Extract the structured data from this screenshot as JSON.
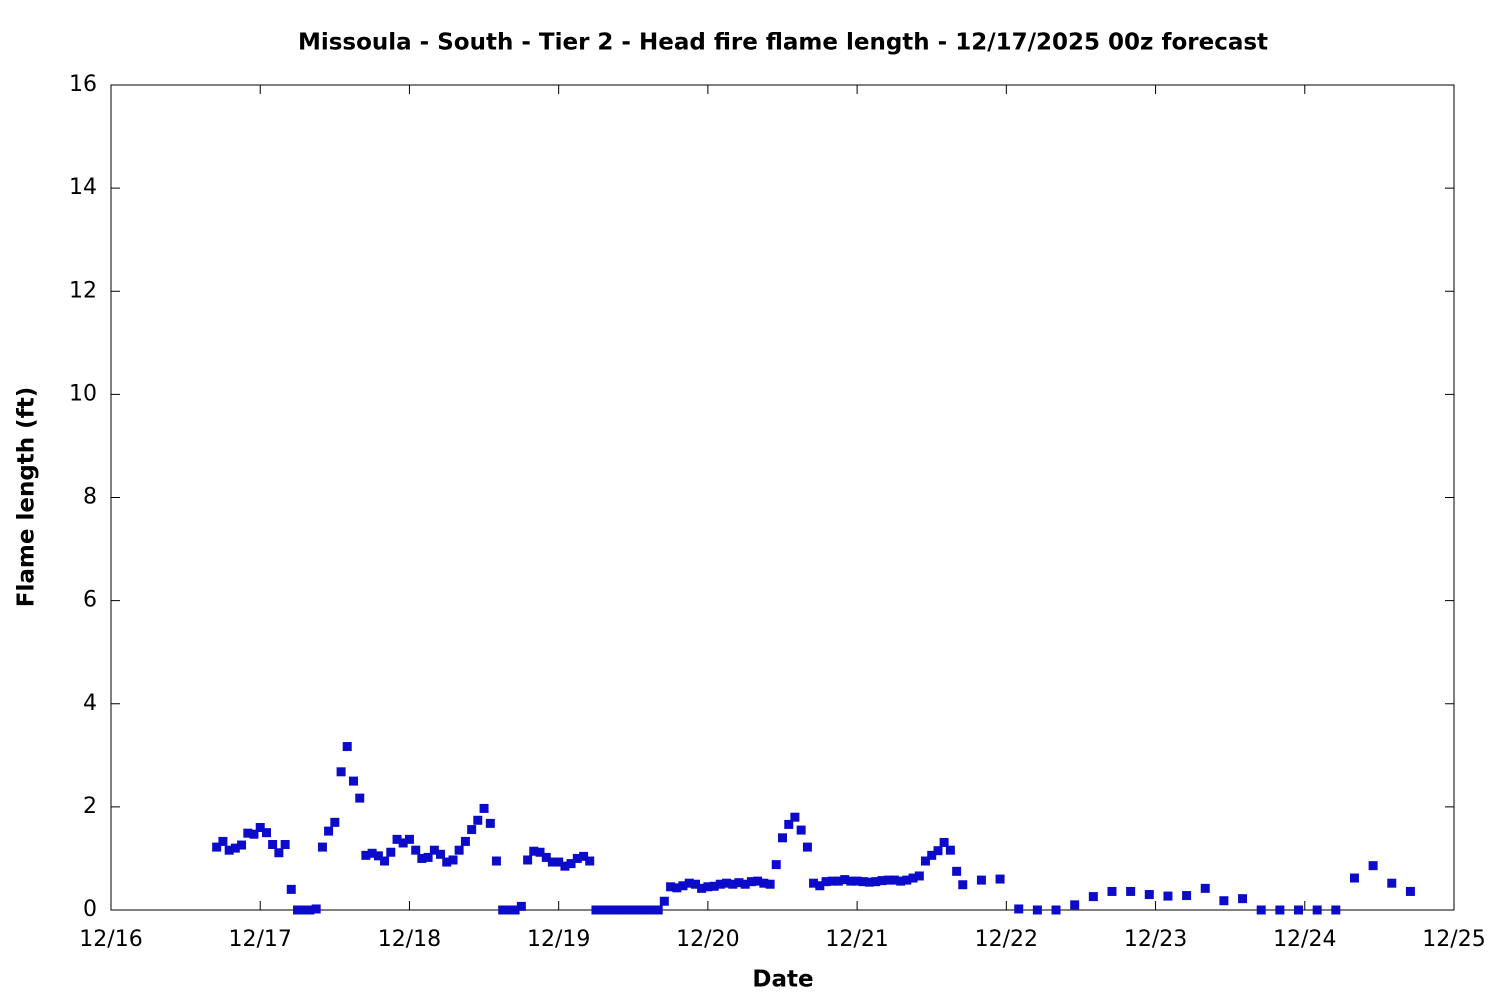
{
  "chart_data": {
    "type": "scatter",
    "title": "Missoula - South - Tier 2 - Head fire flame length - 12/17/2025 00z forecast",
    "xlabel": "Date",
    "ylabel": "Flame length (ft)",
    "xlim": [
      16,
      25
    ],
    "xticks": [
      {
        "value": 16,
        "label": "12/16"
      },
      {
        "value": 17,
        "label": "12/17"
      },
      {
        "value": 18,
        "label": "12/18"
      },
      {
        "value": 19,
        "label": "12/19"
      },
      {
        "value": 20,
        "label": "12/20"
      },
      {
        "value": 21,
        "label": "12/21"
      },
      {
        "value": 22,
        "label": "12/22"
      },
      {
        "value": 23,
        "label": "12/23"
      },
      {
        "value": 24,
        "label": "12/24"
      },
      {
        "value": 25,
        "label": "12/25"
      }
    ],
    "ylim": [
      0,
      16
    ],
    "yticks": [
      0,
      2,
      4,
      6,
      8,
      10,
      12,
      14,
      16
    ],
    "series": [
      {
        "color": "#0b0bc9",
        "x": [
          16.708,
          16.75,
          16.792,
          16.833,
          16.875,
          16.917,
          16.958,
          17.0,
          17.042,
          17.083,
          17.125,
          17.167,
          17.208,
          17.25,
          17.292,
          17.333,
          17.375,
          17.417,
          17.458,
          17.5,
          17.542,
          17.583,
          17.625,
          17.667,
          17.708,
          17.75,
          17.792,
          17.833,
          17.875,
          17.917,
          17.958,
          18.0,
          18.042,
          18.083,
          18.125,
          18.167,
          18.208,
          18.25,
          18.292,
          18.333,
          18.375,
          18.417,
          18.458,
          18.5,
          18.542,
          18.583,
          18.625,
          18.667,
          18.708,
          18.75,
          18.792,
          18.833,
          18.875,
          18.917,
          18.958,
          19.0,
          19.042,
          19.083,
          19.125,
          19.167,
          19.208,
          19.25,
          19.292,
          19.333,
          19.375,
          19.417,
          19.458,
          19.5,
          19.542,
          19.583,
          19.625,
          19.667,
          19.708,
          19.75,
          19.792,
          19.833,
          19.875,
          19.917,
          19.958,
          20.0,
          20.042,
          20.083,
          20.125,
          20.167,
          20.208,
          20.25,
          20.292,
          20.333,
          20.375,
          20.417,
          20.458,
          20.5,
          20.542,
          20.583,
          20.625,
          20.667,
          20.708,
          20.75,
          20.792,
          20.833,
          20.875,
          20.917,
          20.958,
          21.0,
          21.042,
          21.083,
          21.125,
          21.167,
          21.208,
          21.25,
          21.292,
          21.333,
          21.375,
          21.417,
          21.458,
          21.5,
          21.542,
          21.583,
          21.625,
          21.667,
          21.708,
          21.833,
          21.958,
          22.083,
          22.208,
          22.333,
          22.458,
          22.583,
          22.708,
          22.833,
          22.958,
          23.083,
          23.208,
          23.333,
          23.458,
          23.583,
          23.708,
          23.833,
          23.958,
          24.083,
          24.208,
          24.333,
          24.458,
          24.583,
          24.708
        ],
        "values": [
          1.22,
          1.33,
          1.16,
          1.2,
          1.26,
          1.49,
          1.47,
          1.6,
          1.5,
          1.27,
          1.11,
          1.27,
          0.4,
          0,
          0,
          0,
          0.02,
          1.22,
          1.53,
          1.7,
          2.68,
          3.17,
          2.5,
          2.17,
          1.06,
          1.1,
          1.05,
          0.95,
          1.12,
          1.37,
          1.3,
          1.37,
          1.16,
          1.0,
          1.02,
          1.16,
          1.08,
          0.93,
          0.97,
          1.16,
          1.33,
          1.56,
          1.74,
          1.97,
          1.68,
          0.95,
          0,
          0,
          0,
          0.07,
          0.97,
          1.14,
          1.12,
          1.02,
          0.93,
          0.93,
          0.85,
          0.9,
          1.0,
          1.04,
          0.95,
          0,
          0,
          0,
          0,
          0,
          0,
          0,
          0,
          0,
          0,
          0,
          0.17,
          0.45,
          0.43,
          0.47,
          0.52,
          0.5,
          0.42,
          0.45,
          0.46,
          0.5,
          0.52,
          0.5,
          0.53,
          0.5,
          0.55,
          0.56,
          0.52,
          0.5,
          0.88,
          1.4,
          1.66,
          1.8,
          1.55,
          1.22,
          0.52,
          0.47,
          0.55,
          0.56,
          0.56,
          0.59,
          0.56,
          0.56,
          0.55,
          0.54,
          0.55,
          0.57,
          0.58,
          0.58,
          0.56,
          0.58,
          0.62,
          0.66,
          0.95,
          1.06,
          1.15,
          1.31,
          1.16,
          0.75,
          0.49,
          0.58,
          0.6,
          0.02,
          0,
          0,
          0.1,
          0.26,
          0.36,
          0.36,
          0.3,
          0.27,
          0.28,
          0.42,
          0.18,
          0.22,
          0,
          0,
          0,
          0,
          0,
          0.62,
          0.86,
          0.52,
          0.36
        ]
      }
    ]
  }
}
